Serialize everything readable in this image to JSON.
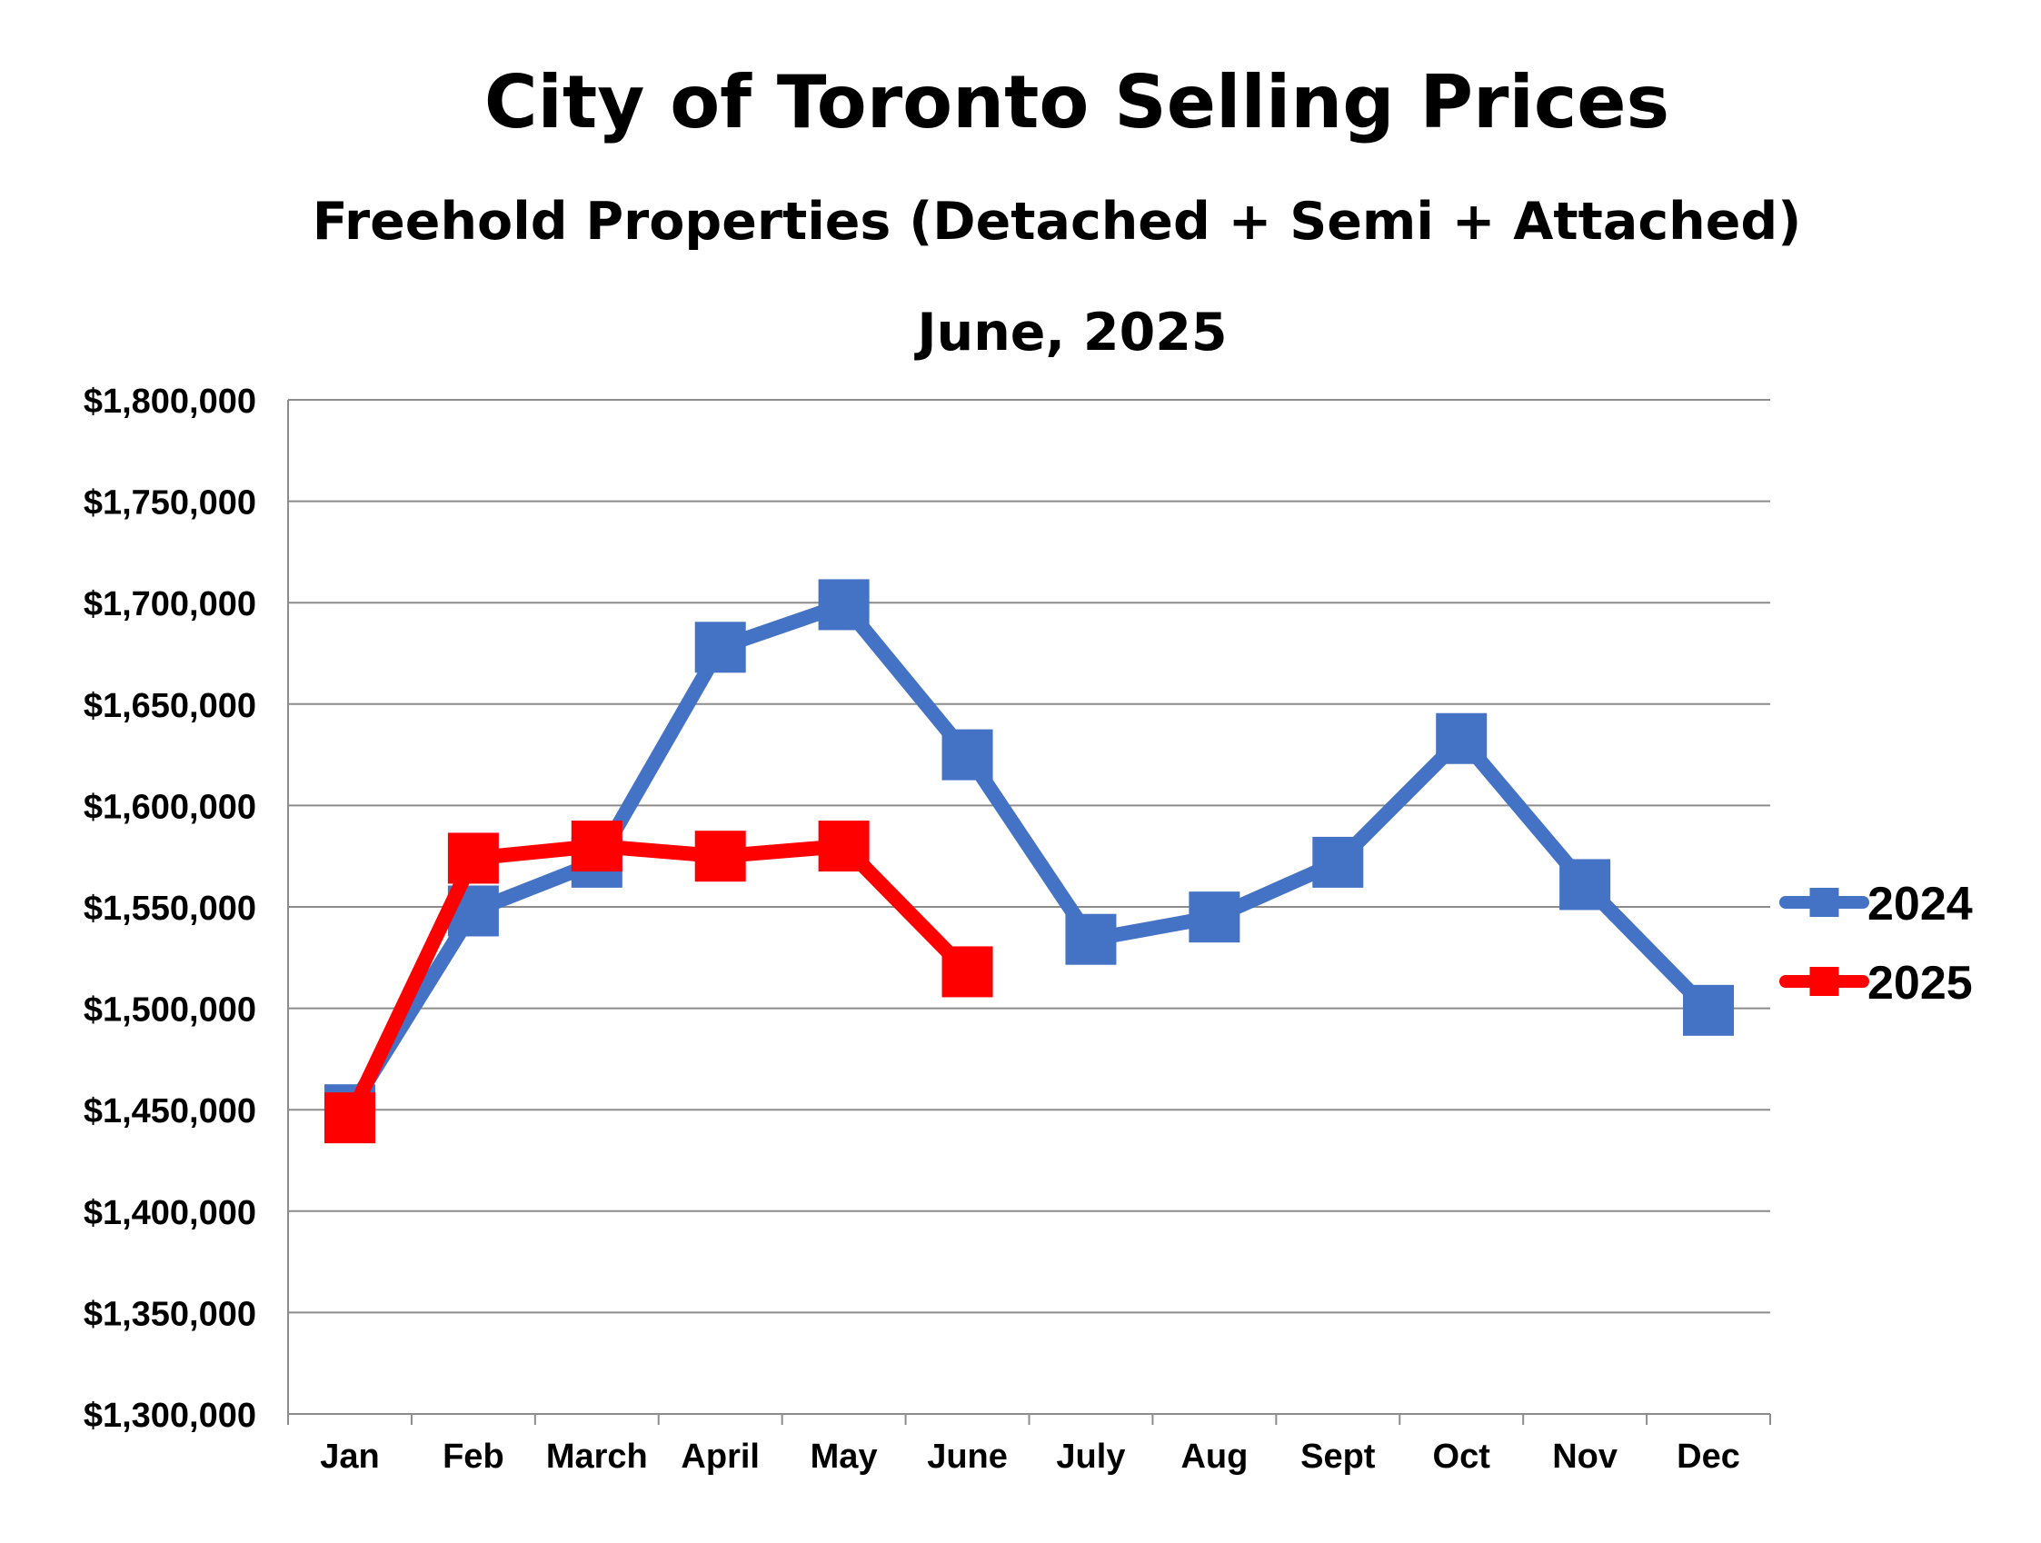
{
  "chart_data": {
    "type": "line",
    "title": "City of Toronto Selling Prices",
    "subtitle": "Freehold Properties (Detached + Semi + Attached)",
    "subtitle2": "June, 2025",
    "categories": [
      "Jan",
      "Feb",
      "March",
      "April",
      "May",
      "June",
      "July",
      "Aug",
      "Sept",
      "Oct",
      "Nov",
      "Dec"
    ],
    "ylim": [
      1300000,
      1800000
    ],
    "yticks": [
      1300000,
      1350000,
      1400000,
      1450000,
      1500000,
      1550000,
      1600000,
      1650000,
      1700000,
      1750000,
      1800000
    ],
    "ytick_labels": [
      "$1,300,000",
      "$1,350,000",
      "$1,400,000",
      "$1,450,000",
      "$1,500,000",
      "$1,550,000",
      "$1,600,000",
      "$1,650,000",
      "$1,700,000",
      "$1,750,000",
      "$1,800,000"
    ],
    "grid": true,
    "legend_position": "right",
    "series": [
      {
        "name": "2024",
        "color": "#4472C4",
        "values": [
          1450000,
          1548000,
          1572000,
          1678000,
          1699000,
          1625000,
          1534000,
          1545000,
          1572000,
          1633000,
          1561000,
          1499000
        ]
      },
      {
        "name": "2025",
        "color": "#FF0000",
        "values": [
          1446000,
          1574000,
          1580000,
          1575000,
          1580000,
          1518000,
          null,
          null,
          null,
          null,
          null,
          null
        ]
      }
    ]
  }
}
